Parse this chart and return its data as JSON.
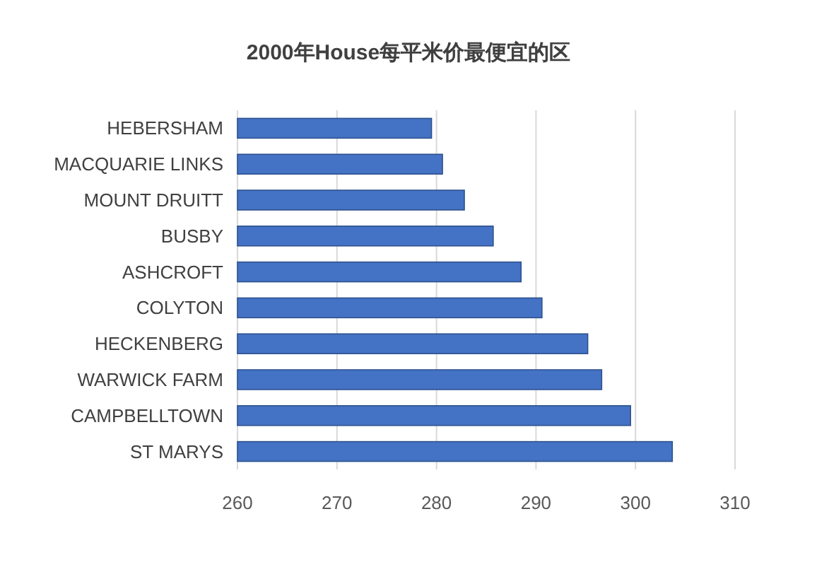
{
  "chart_data": {
    "type": "bar",
    "orientation": "horizontal",
    "title": "2000年House每平米价最便宜的区",
    "categories": [
      "HEBERSHAM",
      "MACQUARIE LINKS",
      "MOUNT DRUITT",
      "BUSBY",
      "ASHCROFT",
      "COLYTON",
      "HECKENBERG",
      "WARWICK FARM",
      "CAMPBELLTOWN",
      "ST MARYS"
    ],
    "values": [
      279.5,
      280.6,
      282.8,
      285.7,
      288.5,
      290.6,
      295.2,
      296.6,
      299.5,
      303.7
    ],
    "color": "#4472c4",
    "xlim": [
      260,
      310
    ],
    "xticks": [
      260,
      270,
      280,
      290,
      300,
      310
    ],
    "grid": "x"
  }
}
